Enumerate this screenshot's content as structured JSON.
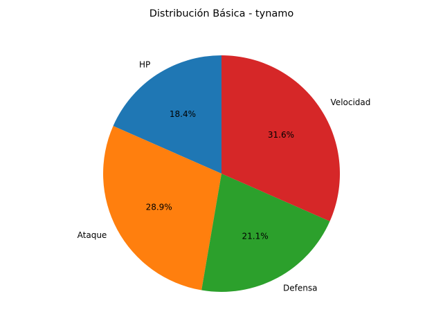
{
  "chart_data": {
    "type": "pie",
    "title": "Distribución Básica - tynamo",
    "start_angle_deg": 90,
    "direction": "counterclockwise",
    "slices": [
      {
        "label": "HP",
        "value": 18.4,
        "pct_label": "18.4%",
        "color": "#1f77b4"
      },
      {
        "label": "Ataque",
        "value": 28.9,
        "pct_label": "28.9%",
        "color": "#ff7f0e"
      },
      {
        "label": "Defensa",
        "value": 21.1,
        "pct_label": "21.1%",
        "color": "#2ca02c"
      },
      {
        "label": "Velocidad",
        "value": 31.6,
        "pct_label": "31.6%",
        "color": "#d62728"
      }
    ]
  }
}
